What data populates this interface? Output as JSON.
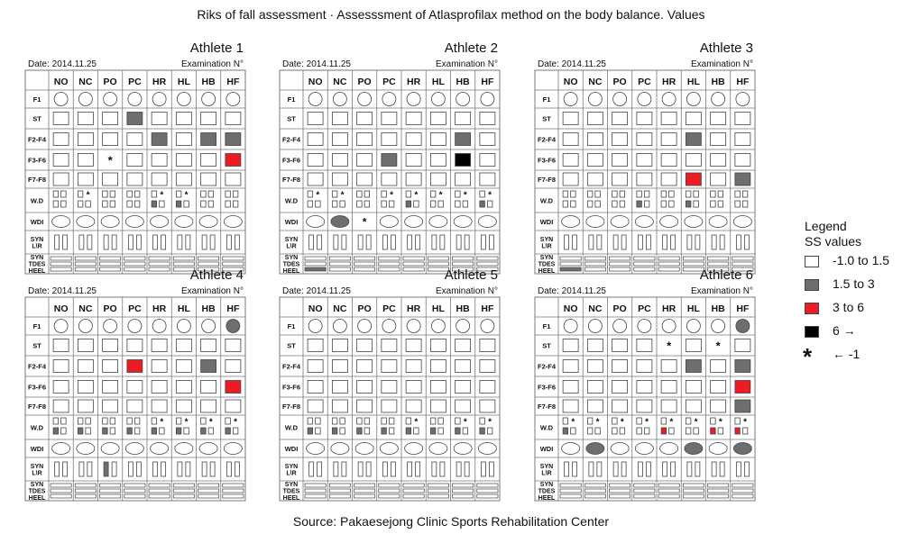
{
  "title": "Riks of fall assessment · Assesssment of Atlasprofilax method on the body balance. Values",
  "source": "Source: Pakaesejong Clinic Sports Rehabilitation Center",
  "legend": {
    "title1": "Legend",
    "title2": "SS values",
    "items": [
      {
        "label": "-1.0 to 1.5",
        "color": "#ffffff"
      },
      {
        "label": "1.5 to 3",
        "color": "#6d6e70"
      },
      {
        "label": "3 to 6",
        "color": "#ec1c24"
      },
      {
        "label": "6 →",
        "color": "#000000"
      },
      {
        "label": "← -1",
        "symbol": "*"
      }
    ]
  },
  "chart_data": {
    "type": "table",
    "columns": [
      "NO",
      "NC",
      "PO",
      "PC",
      "HR",
      "HL",
      "HB",
      "HF"
    ],
    "rows": [
      "F1",
      "ST",
      "F2-F4",
      "F3-F6",
      "F7-F8",
      "W.D",
      "WDI",
      "SYN L\\R",
      "SYN TDES HEEL"
    ],
    "row_shapes": [
      "circle",
      "square",
      "square",
      "square",
      "square",
      "wd",
      "ellipse",
      "syn",
      "bars"
    ],
    "date_label": "Date: 2014.11.25",
    "exam_label": "Examination N°",
    "athletes": [
      {
        "name": "Athlete 1",
        "fills": {
          "ST": {
            "PC": "gray"
          },
          "F2-F4": {
            "HR": "gray",
            "HB": "gray",
            "HF": "gray"
          },
          "F3-F6": {
            "HF": "red"
          }
        },
        "stars": {
          "F3-F6": [
            "PO"
          ]
        },
        "wd": {
          "NC": {
            "star": true
          },
          "HR": {
            "star": true,
            "fill": "gray"
          },
          "HL": {
            "star": true,
            "fill": "gray"
          }
        },
        "wdi": {},
        "syn": {},
        "heel": {}
      },
      {
        "name": "Athlete 2",
        "fills": {
          "F2-F4": {
            "HB": "gray"
          },
          "F3-F6": {
            "PC": "gray",
            "HB": "black"
          }
        },
        "stars": {},
        "wd": {
          "NO": {
            "star": true
          },
          "NC": {
            "star": true
          },
          "PC": {
            "star": true
          },
          "HR": {
            "star": true,
            "fill": "gray"
          },
          "HL": {
            "star": true
          },
          "HB": {
            "star": true
          },
          "HF": {
            "star": true,
            "fill": "gray"
          }
        },
        "wdi": {
          "NC": "gray",
          "PO": "star"
        },
        "syn": {},
        "heel": {
          "NO": "gray"
        }
      },
      {
        "name": "Athlete 3",
        "fills": {
          "F2-F4": {
            "HL": "gray"
          },
          "F7-F8": {
            "HL": "red",
            "HF": "gray"
          }
        },
        "stars": {},
        "wd": {
          "PC": {
            "fill": "gray"
          },
          "HL": {
            "fill": "gray"
          }
        },
        "wdi": {},
        "syn": {},
        "heel": {
          "NO": "gray"
        }
      },
      {
        "name": "Athlete 4",
        "fills": {
          "F1": {
            "HF": "gray"
          },
          "F2-F4": {
            "PC": "red",
            "HB": "gray"
          },
          "F3-F6": {
            "HF": "red"
          }
        },
        "stars": {},
        "wd": {
          "NO": {
            "fill": "gray"
          },
          "NC": {
            "fill": "gray"
          },
          "PO": {
            "fill": "gray"
          },
          "PC": {
            "fill": "gray"
          },
          "HR": {
            "star": true,
            "fill": "gray"
          },
          "HL": {
            "star": true,
            "fill": "gray"
          },
          "HB": {
            "star": true,
            "fill": "gray"
          },
          "HF": {
            "star": true,
            "fill": "gray"
          }
        },
        "wdi": {},
        "syn": {
          "PO": "gray"
        },
        "heel": {}
      },
      {
        "name": "Athlete 5",
        "fills": {},
        "stars": {},
        "wd": {
          "NO": {
            "fill": "gray"
          },
          "NC": {
            "fill": "gray"
          },
          "PO": {
            "fill": "gray"
          },
          "PC": {
            "fill": "gray"
          },
          "HR": {
            "star": true,
            "fill": "gray"
          },
          "HL": {
            "fill": "gray"
          },
          "HB": {
            "star": true,
            "fill": "gray"
          },
          "HF": {
            "star": true,
            "fill": "gray"
          }
        },
        "wdi": {},
        "syn": {},
        "heel": {}
      },
      {
        "name": "Athlete 6",
        "fills": {
          "F1": {
            "HF": "gray"
          },
          "F2-F4": {
            "HL": "gray",
            "HF": "gray"
          },
          "F3-F6": {
            "HF": "red"
          },
          "F7-F8": {
            "HF": "gray"
          }
        },
        "stars": {
          "ST": [
            "HR",
            "HB"
          ]
        },
        "wd": {
          "NO": {
            "star": true,
            "fill": "gray"
          },
          "NC": {
            "star": true
          },
          "PO": {
            "star": true
          },
          "PC": {
            "star": true
          },
          "HR": {
            "star": true,
            "fill": "red"
          },
          "HL": {
            "star": true
          },
          "HB": {
            "star": true,
            "fill": "red"
          },
          "HF": {
            "star": true,
            "fill": "red"
          }
        },
        "wdi": {
          "NC": "gray",
          "HL": "gray",
          "HF": "gray"
        },
        "syn": {},
        "heel": {}
      }
    ]
  },
  "colors": {
    "gray": "#6d6e70",
    "red": "#ec1c24",
    "black": "#000000",
    "line": "#7a7a7a"
  }
}
